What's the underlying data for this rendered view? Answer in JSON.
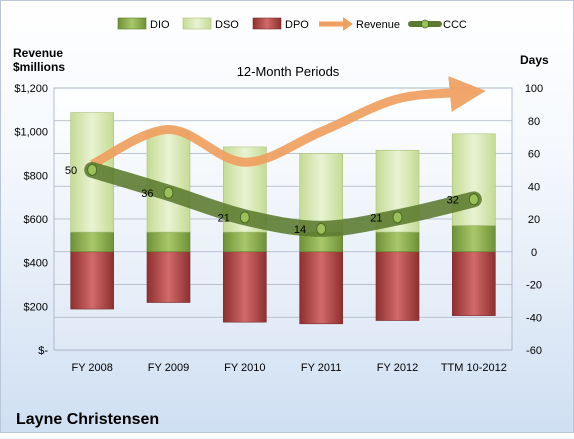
{
  "chart_data": {
    "type": "bar",
    "title": "12-Month Periods",
    "company": "Layne Christensen",
    "left_axis_label": [
      "Revenue",
      "$millions"
    ],
    "right_axis_label": "Days",
    "categories": [
      "FY 2008",
      "FY 2009",
      "FY 2010",
      "FY 2011",
      "FY 2012",
      "TTM 10-2012"
    ],
    "left_ylim": [
      0,
      1200
    ],
    "left_ticks": [
      {
        "value": 0,
        "label": "$-"
      },
      {
        "value": 200,
        "label": "$200"
      },
      {
        "value": 400,
        "label": "$400"
      },
      {
        "value": 600,
        "label": "$600"
      },
      {
        "value": 800,
        "label": "$800"
      },
      {
        "value": 1000,
        "label": "$1,000"
      },
      {
        "value": 1200,
        "label": "$1,200"
      }
    ],
    "right_ylim": [
      -60,
      100
    ],
    "right_ticks": [
      {
        "value": -60,
        "label": "-60"
      },
      {
        "value": -40,
        "label": "-40"
      },
      {
        "value": -20,
        "label": "-20"
      },
      {
        "value": 0,
        "label": "0"
      },
      {
        "value": 20,
        "label": "20"
      },
      {
        "value": 40,
        "label": "40"
      },
      {
        "value": 60,
        "label": "60"
      },
      {
        "value": 80,
        "label": "80"
      },
      {
        "value": 100,
        "label": "100"
      }
    ],
    "grid": true,
    "legend_position": "top",
    "legend": [
      "DIO",
      "DSO",
      "DPO",
      "Revenue",
      "CCC"
    ],
    "series": [
      {
        "name": "DIO",
        "axis": "right",
        "kind": "stacked-bar",
        "values": [
          12,
          12,
          12,
          12,
          12,
          16
        ],
        "color": "#86a94a"
      },
      {
        "name": "DSO",
        "axis": "right",
        "kind": "stacked-bar",
        "values": [
          73,
          62,
          52,
          48,
          50,
          56
        ],
        "color": "#d6e7ae"
      },
      {
        "name": "DPO",
        "axis": "right",
        "kind": "negative-bar",
        "values": [
          -35,
          -31,
          -43,
          -44,
          -42,
          -39
        ],
        "color": "#b24a4a"
      },
      {
        "name": "Revenue",
        "axis": "left",
        "kind": "trend-arrow",
        "values": [
          850,
          1010,
          860,
          1000,
          1150,
          1180
        ],
        "color": "#f0a060"
      },
      {
        "name": "CCC",
        "axis": "right",
        "kind": "line",
        "values": [
          50,
          36,
          21,
          14,
          21,
          32
        ],
        "labels": [
          "50",
          "36",
          "21",
          "14",
          "21",
          "32"
        ],
        "color": "#5b7a2e"
      }
    ]
  }
}
